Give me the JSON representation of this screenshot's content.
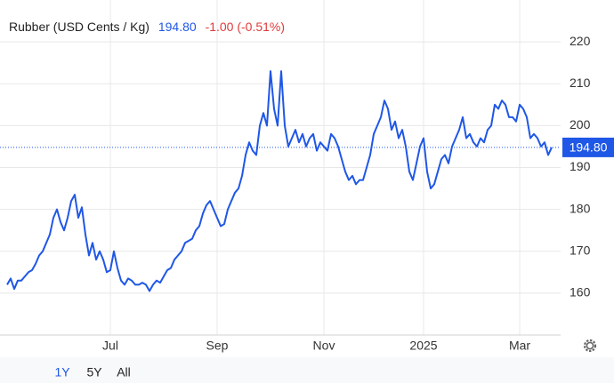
{
  "chart_data": {
    "type": "line",
    "title": "Rubber (USD Cents / Kg)",
    "price": {
      "value": 194.8,
      "label": "194.80"
    },
    "change": "-1.00 (-0.51%)",
    "series": [
      {
        "name": "Rubber",
        "color": "#1f57e6",
        "values": [
          162,
          163.5,
          161,
          163,
          163,
          164,
          165,
          165.5,
          167,
          169,
          170,
          172,
          174,
          178,
          180,
          177,
          175,
          178,
          182,
          183.5,
          178,
          180.5,
          174,
          169,
          172,
          168,
          170,
          168,
          165,
          165.5,
          170,
          166,
          163,
          162,
          163.5,
          163,
          162,
          162,
          162.5,
          162,
          160.5,
          162,
          163,
          162.5,
          164,
          165.5,
          166,
          168,
          169,
          170,
          172,
          172.5,
          173,
          175,
          176,
          179,
          181,
          182,
          180,
          178,
          176,
          176.5,
          180,
          182,
          184,
          185,
          188,
          193,
          196,
          194,
          193,
          200,
          203,
          200,
          213,
          204,
          200,
          213,
          200,
          195,
          197,
          199,
          196,
          198,
          195,
          197,
          198,
          194,
          196,
          195,
          194,
          198,
          197,
          195,
          192,
          189,
          187,
          188,
          186,
          187,
          187,
          190,
          193,
          198,
          200,
          202,
          206,
          204,
          199,
          201,
          197,
          199,
          195,
          189,
          187,
          191,
          195,
          197,
          189,
          185,
          186,
          189,
          192,
          193,
          191,
          195,
          197,
          199,
          202,
          197,
          198,
          196,
          195,
          197,
          196,
          199,
          200,
          205,
          204,
          206,
          205,
          202,
          202,
          201,
          205,
          204,
          202,
          197,
          198,
          197,
          195,
          196,
          193,
          194.8
        ]
      }
    ],
    "xlim": [
      0,
      153
    ],
    "xticks": [
      {
        "value": 29,
        "label": "Jul"
      },
      {
        "value": 59,
        "label": "Sep"
      },
      {
        "value": 89,
        "label": "Nov"
      },
      {
        "value": 117,
        "label": "2025"
      },
      {
        "value": 144,
        "label": "Mar"
      }
    ],
    "ylim": [
      150,
      230
    ],
    "yticks": [
      160,
      170,
      180,
      190,
      200,
      210,
      220
    ],
    "grid": true,
    "range_buttons": [
      "1Y",
      "5Y",
      "All"
    ],
    "selected_range": 0
  }
}
